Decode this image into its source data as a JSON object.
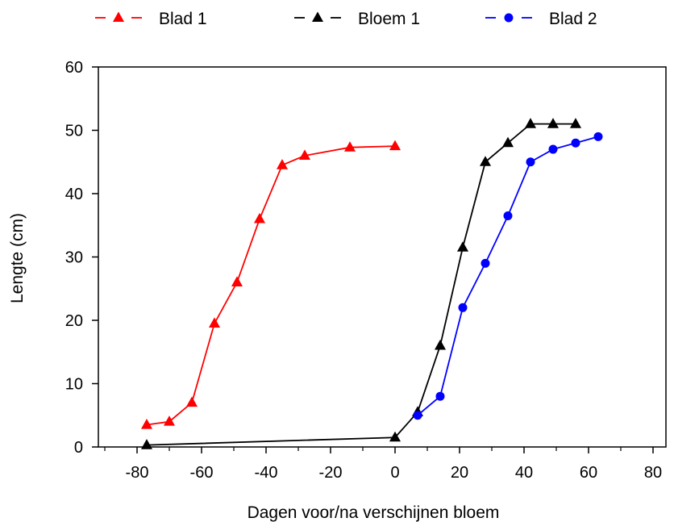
{
  "chart_data": {
    "type": "line",
    "title": "",
    "xlabel": "Dagen voor/na verschijnen bloem",
    "ylabel": "Lengte (cm)",
    "xlim": [
      -92,
      84
    ],
    "ylim": [
      0,
      60
    ],
    "xticks": [
      -80,
      -60,
      -40,
      -20,
      0,
      20,
      40,
      60,
      80
    ],
    "yticks": [
      0,
      10,
      20,
      30,
      40,
      50,
      60
    ],
    "grid": false,
    "legend_position": "top",
    "series": [
      {
        "name": "Blad 1",
        "color": "#ff0000",
        "marker": "triangle",
        "x": [
          -77,
          -70,
          -63,
          -56,
          -49,
          -42,
          -35,
          -28,
          -14,
          0
        ],
        "y": [
          3.5,
          4,
          7,
          19.5,
          26,
          36,
          44.5,
          46,
          47.3,
          47.5
        ]
      },
      {
        "name": "Bloem 1",
        "color": "#000000",
        "marker": "triangle",
        "x": [
          -77,
          0,
          7,
          14,
          21,
          28,
          35,
          42,
          49,
          56
        ],
        "y": [
          0.3,
          1.5,
          5.5,
          16,
          31.5,
          45,
          48,
          51,
          51,
          51
        ]
      },
      {
        "name": "Blad 2",
        "color": "#0000ff",
        "marker": "circle",
        "x": [
          7,
          14,
          21,
          28,
          35,
          42,
          49,
          56,
          63
        ],
        "y": [
          5,
          8,
          22,
          29,
          36.5,
          45,
          47,
          48,
          49
        ]
      }
    ]
  }
}
